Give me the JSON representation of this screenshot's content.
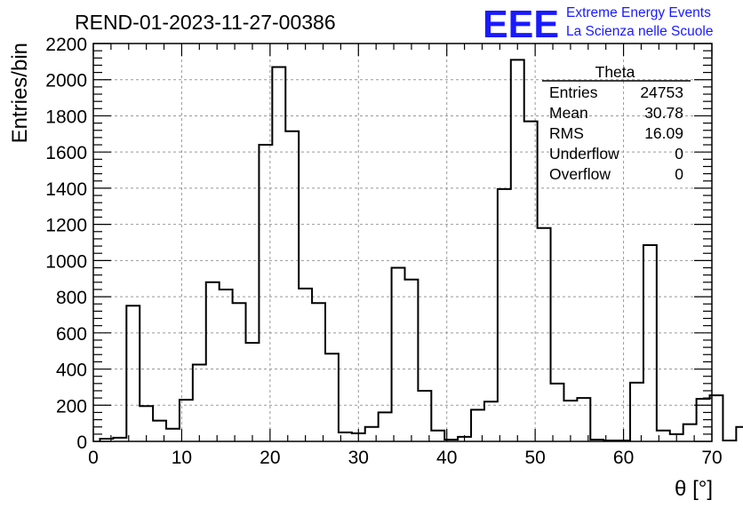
{
  "chart_data": {
    "type": "histogram",
    "title": "REND-01-2023-11-27-00386",
    "xlabel": "θ [°]",
    "ylabel": "Entries/bin",
    "xlim": [
      0,
      70
    ],
    "ylim": [
      0,
      2200
    ],
    "x_ticks": [
      0,
      10,
      20,
      30,
      40,
      50,
      60,
      70
    ],
    "y_ticks": [
      0,
      200,
      400,
      600,
      800,
      1000,
      1200,
      1400,
      1600,
      1800,
      2000,
      2200
    ],
    "grid": true,
    "bin_width": 1.5,
    "bin_edges_start": 0.75,
    "values": [
      15,
      20,
      750,
      195,
      115,
      70,
      230,
      425,
      880,
      840,
      765,
      545,
      1640,
      2070,
      1715,
      845,
      765,
      485,
      50,
      45,
      80,
      160,
      960,
      895,
      280,
      60,
      10,
      25,
      175,
      220,
      1395,
      2110,
      1770,
      1180,
      320,
      225,
      240,
      10,
      5,
      5,
      325,
      1085,
      60,
      40,
      95,
      235,
      255,
      5,
      80
    ],
    "stats_box": {
      "title": "Theta",
      "rows": [
        {
          "label": "Entries",
          "value": "24753"
        },
        {
          "label": "Mean",
          "value": "30.78"
        },
        {
          "label": "RMS",
          "value": "16.09"
        },
        {
          "label": "Underflow",
          "value": "0"
        },
        {
          "label": "Overflow",
          "value": "0"
        }
      ]
    },
    "logo": {
      "letters": "EEE",
      "line1": "Extreme Energy Events",
      "line2": "La Scienza nelle Scuole",
      "color": "#1a1aff"
    }
  }
}
